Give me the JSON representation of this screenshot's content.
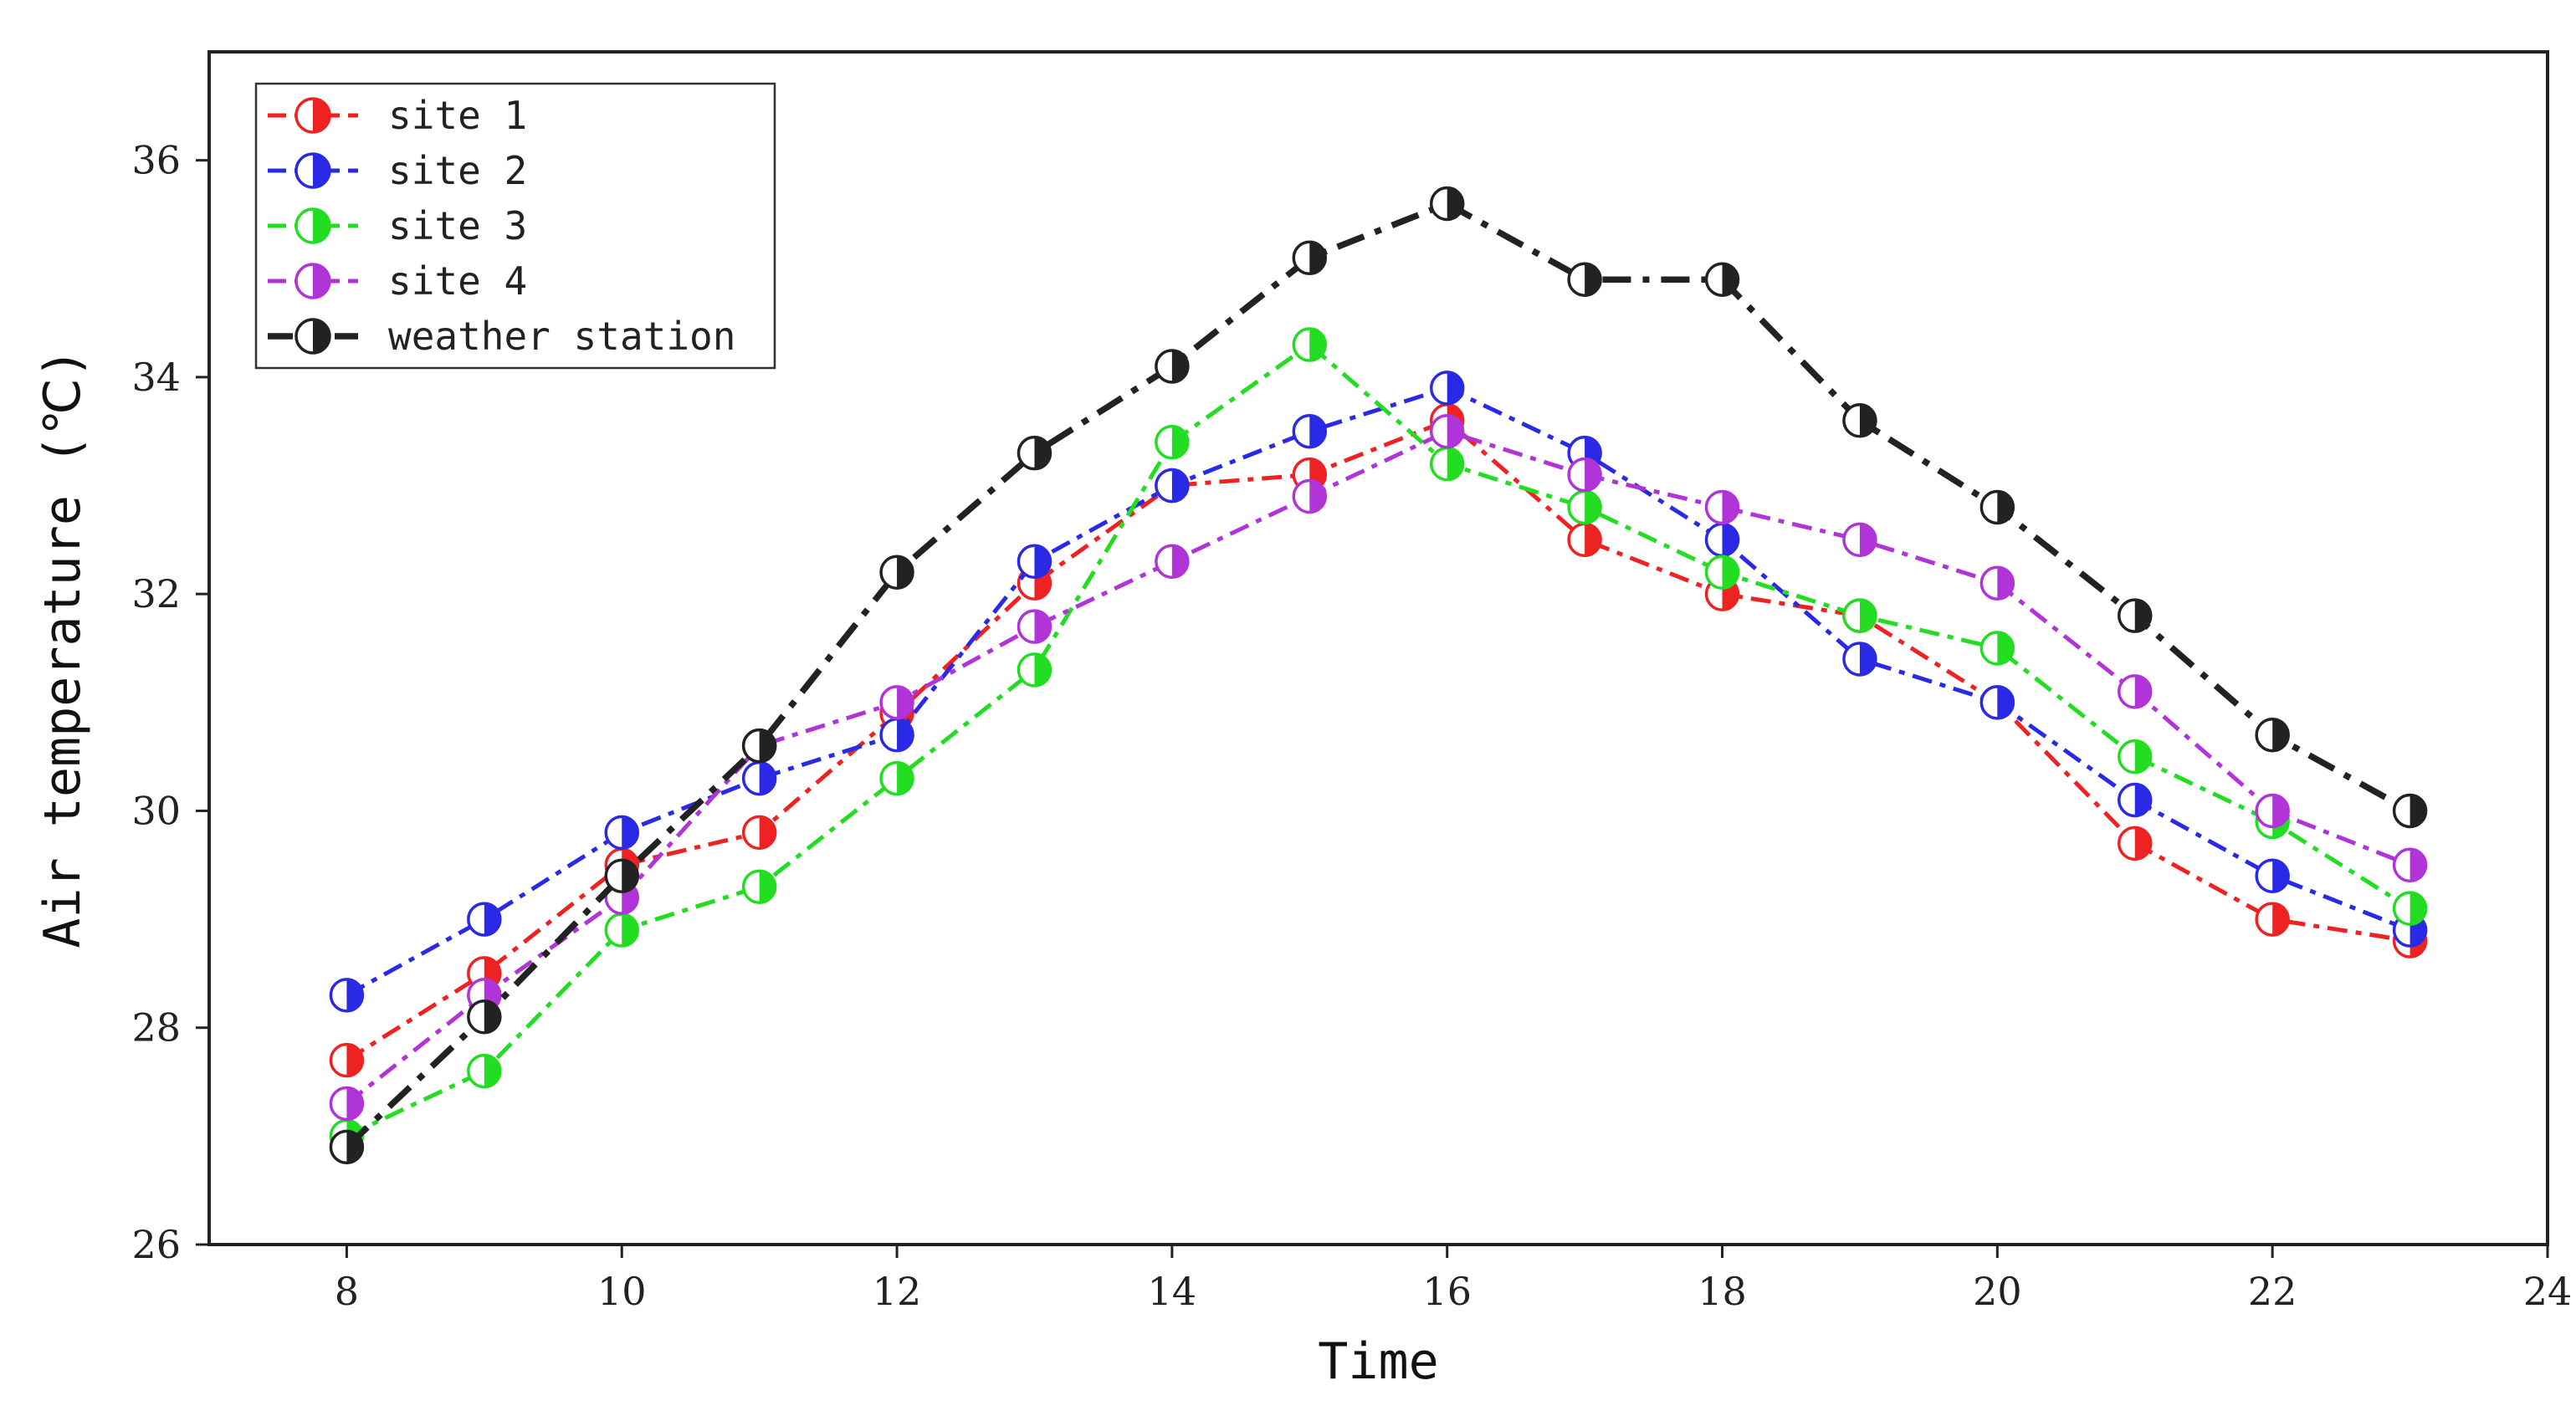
{
  "chart_data": {
    "type": "line",
    "title": "",
    "xlabel": "Time",
    "ylabel": "Air temperature (℃)",
    "xlim": [
      7,
      24
    ],
    "ylim": [
      26,
      37
    ],
    "xticks": [
      8,
      10,
      12,
      14,
      16,
      18,
      20,
      22,
      24
    ],
    "yticks": [
      26,
      28,
      30,
      32,
      34,
      36
    ],
    "grid": false,
    "legend_position": "top-left",
    "x": [
      8,
      9,
      10,
      11,
      12,
      13,
      14,
      15,
      16,
      17,
      18,
      19,
      20,
      21,
      22,
      23
    ],
    "series": [
      {
        "name": "site 1",
        "color": "#ee2222",
        "dash": "dashdot",
        "values": [
          27.7,
          28.5,
          29.5,
          29.8,
          30.9,
          32.1,
          33.0,
          33.1,
          33.6,
          32.5,
          32.0,
          31.8,
          31.0,
          29.7,
          29.0,
          28.8
        ]
      },
      {
        "name": "site 2",
        "color": "#2a2ae6",
        "dash": "dashdot",
        "values": [
          28.3,
          29.0,
          29.8,
          30.3,
          30.7,
          32.3,
          33.0,
          33.5,
          33.9,
          33.3,
          32.5,
          31.4,
          31.0,
          30.1,
          29.4,
          28.9
        ]
      },
      {
        "name": "site 3",
        "color": "#22dd22",
        "dash": "dashdot",
        "values": [
          27.0,
          27.6,
          28.9,
          29.3,
          30.3,
          31.3,
          33.4,
          34.3,
          33.2,
          32.8,
          32.2,
          31.8,
          31.5,
          30.5,
          29.9,
          29.1
        ]
      },
      {
        "name": "site 4",
        "color": "#b034d8",
        "dash": "dashdot",
        "values": [
          27.3,
          28.3,
          29.2,
          30.6,
          31.0,
          31.7,
          32.3,
          32.9,
          33.5,
          33.1,
          32.8,
          32.5,
          32.1,
          31.1,
          30.0,
          29.5
        ]
      },
      {
        "name": "weather station",
        "color": "#222222",
        "dash": "dashdotbold",
        "values": [
          26.9,
          28.1,
          29.4,
          30.6,
          32.2,
          33.3,
          34.1,
          35.1,
          35.6,
          34.9,
          34.9,
          33.6,
          32.8,
          31.8,
          30.7,
          30.0
        ]
      }
    ]
  }
}
